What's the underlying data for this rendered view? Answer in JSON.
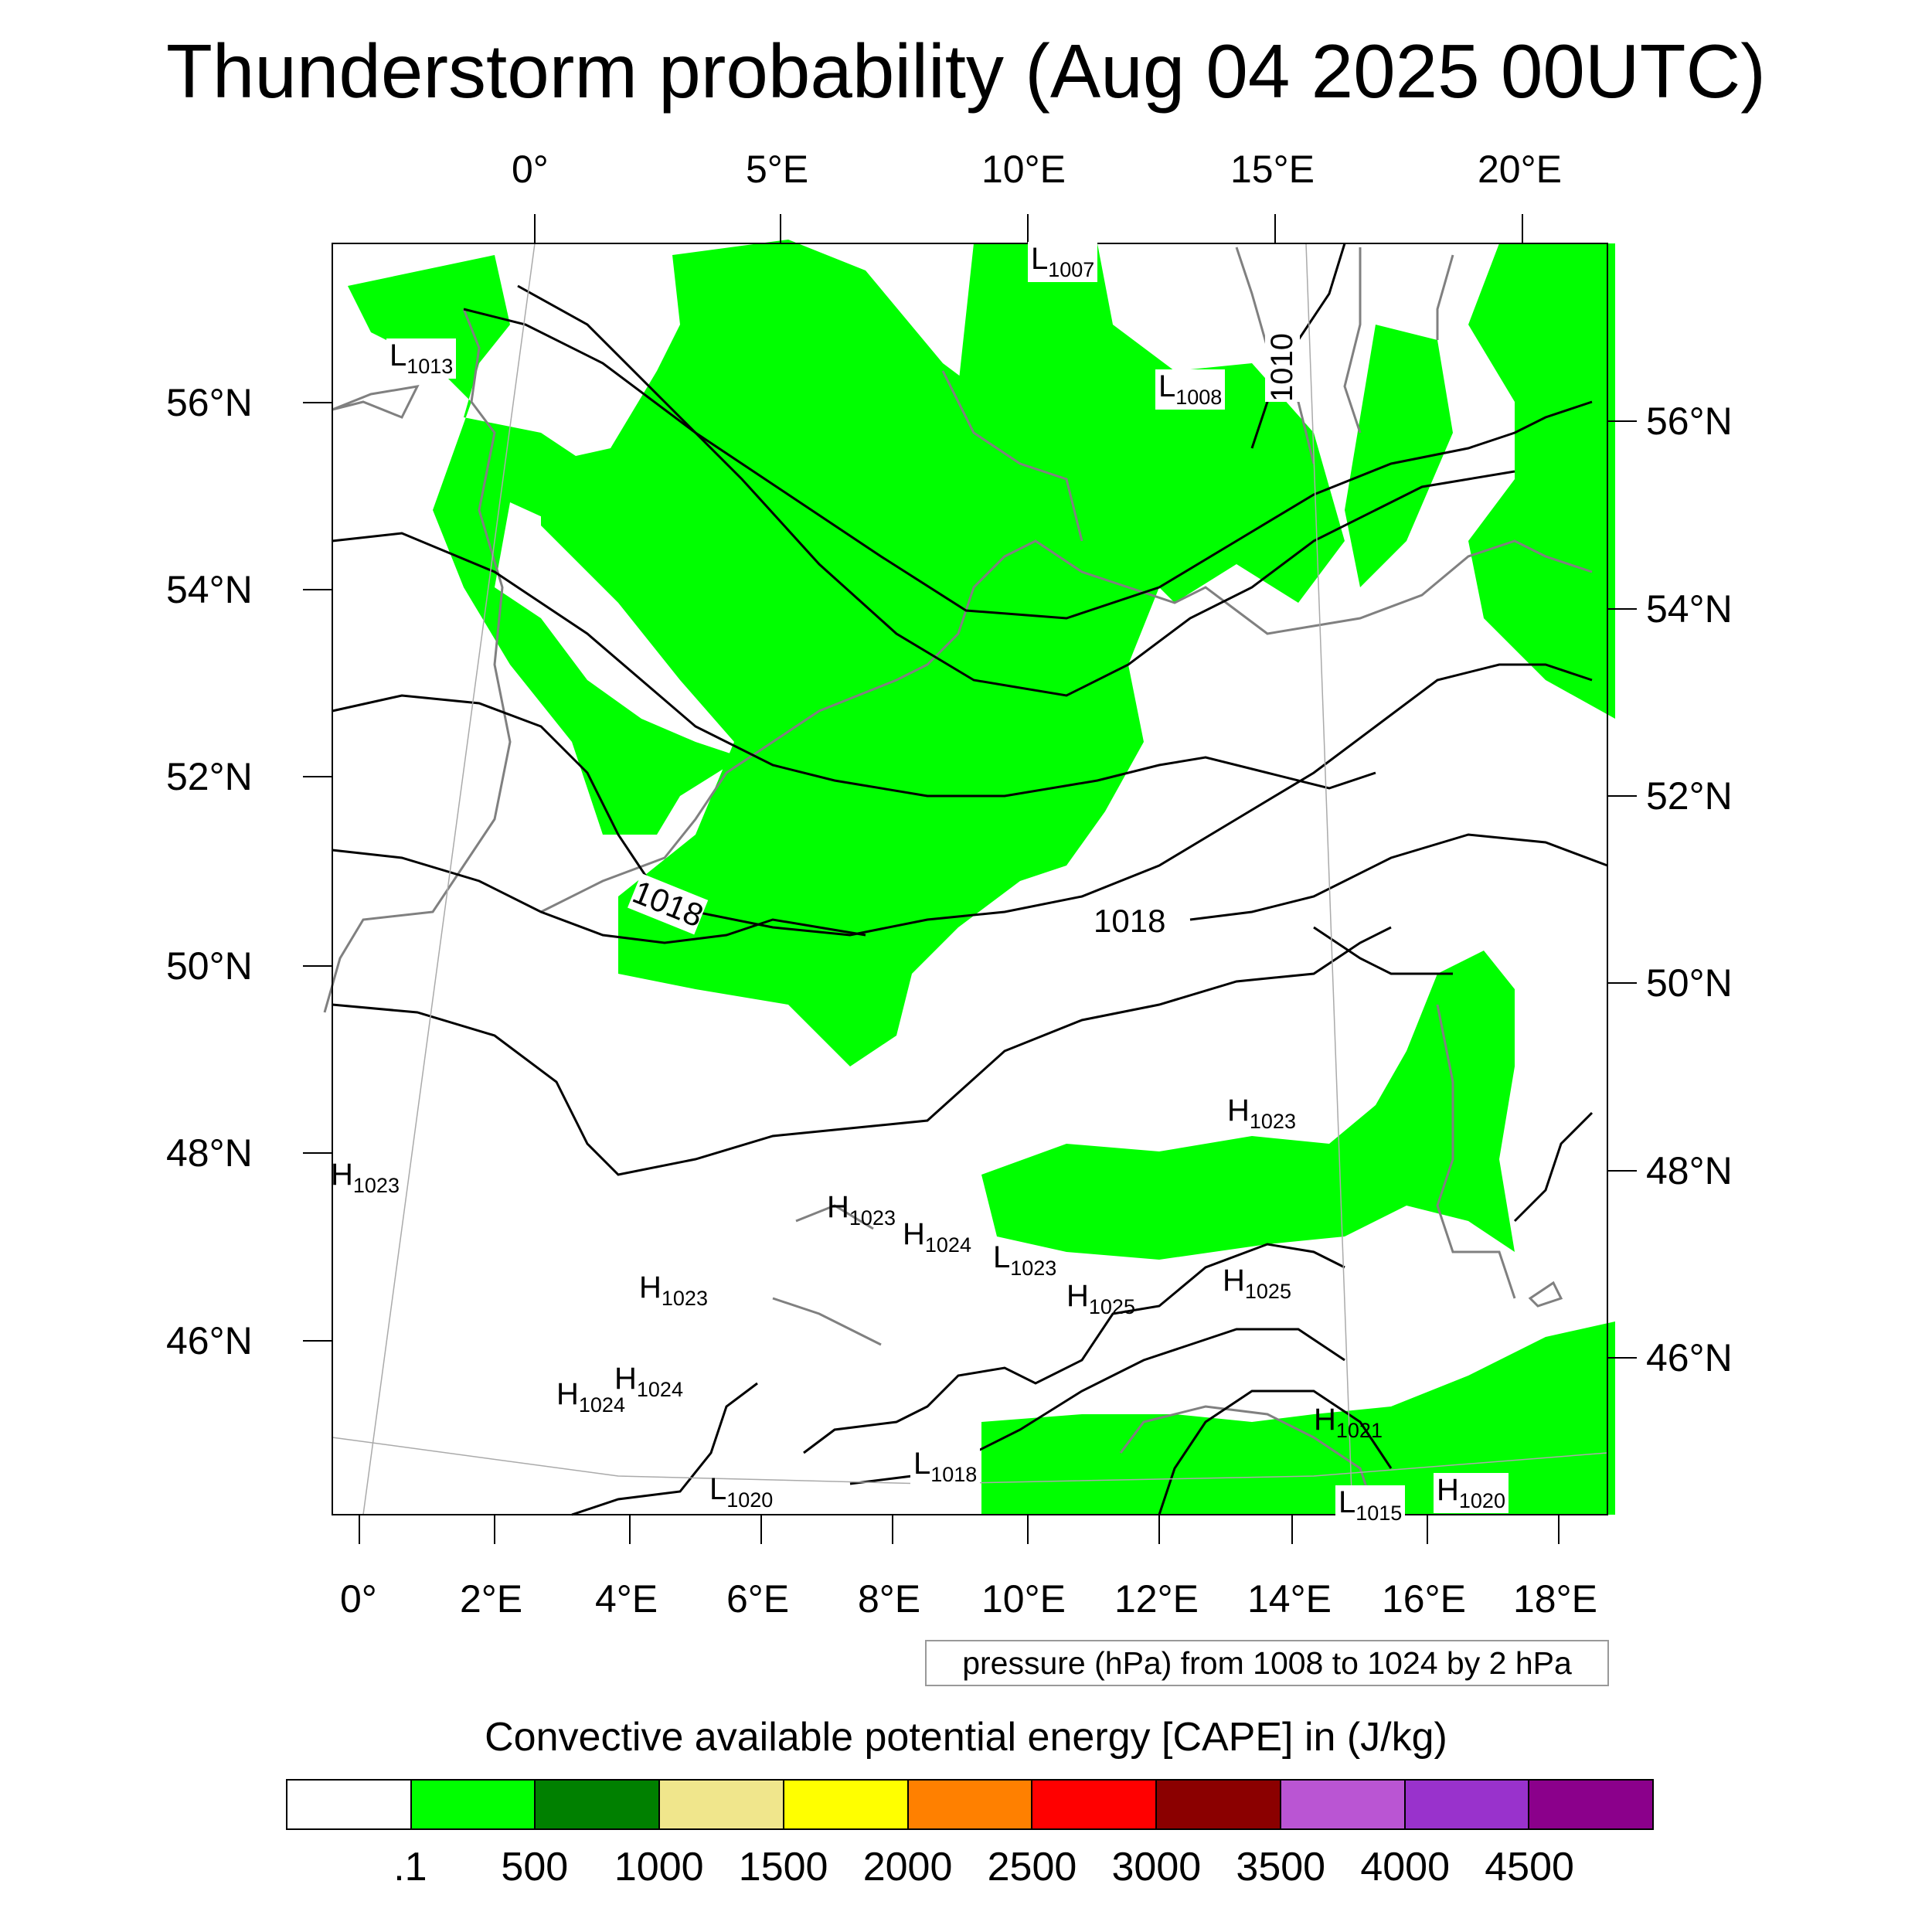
{
  "title": "Thunderstorm probability (Aug 04 2025 00UTC)",
  "map": {
    "top_lon_labels": [
      "0°",
      "5°E",
      "10°E",
      "15°E",
      "20°E"
    ],
    "bottom_lon_labels": [
      "0°",
      "2°E",
      "4°E",
      "6°E",
      "8°E",
      "10°E",
      "12°E",
      "14°E",
      "16°E",
      "18°E"
    ],
    "left_lat_labels": [
      "56°N",
      "54°N",
      "52°N",
      "50°N",
      "48°N",
      "46°N"
    ],
    "right_lat_labels": [
      "56°N",
      "54°N",
      "52°N",
      "50°N",
      "48°N",
      "46°N"
    ],
    "isobar_labels": [
      "1018",
      "1018",
      "1010"
    ],
    "pressure_centers": [
      {
        "type": "L",
        "value": "1013"
      },
      {
        "type": "L",
        "value": "1007"
      },
      {
        "type": "L",
        "value": "1008"
      },
      {
        "type": "H",
        "value": "1023"
      },
      {
        "type": "H",
        "value": "1023"
      },
      {
        "type": "H",
        "value": "1023"
      },
      {
        "type": "H",
        "value": "1024"
      },
      {
        "type": "L",
        "value": "1023"
      },
      {
        "type": "H",
        "value": "1023"
      },
      {
        "type": "H",
        "value": "1025"
      },
      {
        "type": "H",
        "value": "1025"
      },
      {
        "type": "H",
        "value": "1024"
      },
      {
        "type": "H",
        "value": "1024"
      },
      {
        "type": "H",
        "value": "1021"
      },
      {
        "type": "L",
        "value": "1018"
      },
      {
        "type": "L",
        "value": "1020"
      },
      {
        "type": "L",
        "value": "1015"
      },
      {
        "type": "H",
        "value": "1020"
      }
    ],
    "colors": {
      "cape_low": "#00ff00",
      "coast": "#808080",
      "isobar": "#000000"
    }
  },
  "contour_note": "pressure (hPa) from 1008 to 1024 by 2 hPa",
  "colorbar": {
    "title": "Convective available potential energy [CAPE] in (J/kg)",
    "colors": [
      "#ffffff",
      "#00ff00",
      "#008000",
      "#f0e68c",
      "#ffff00",
      "#ff8000",
      "#ff0000",
      "#8b0000",
      "#ba55d3",
      "#9932cc",
      "#8b008b"
    ],
    "labels": [
      ".1",
      "500",
      "1000",
      "1500",
      "2000",
      "2500",
      "3000",
      "3500",
      "4000",
      "4500"
    ]
  }
}
